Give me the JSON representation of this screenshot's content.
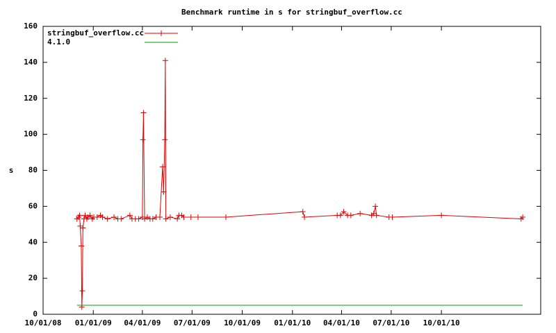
{
  "chart_data": {
    "type": "line",
    "title": "Benchmark runtime in s for stringbuf_overflow.cc",
    "y_label": "s",
    "legend": "top-left",
    "xlim": [
      "2008-10-01",
      "2011-04-01"
    ],
    "xticks": [
      {
        "value": "2008-10-01",
        "label": "10/01/08"
      },
      {
        "value": "2009-01-01",
        "label": "01/01/09"
      },
      {
        "value": "2009-04-01",
        "label": "04/01/09"
      },
      {
        "value": "2009-07-01",
        "label": "07/01/09"
      },
      {
        "value": "2009-10-01",
        "label": "10/01/09"
      },
      {
        "value": "2010-01-01",
        "label": "01/01/10"
      },
      {
        "value": "2010-04-01",
        "label": "04/01/10"
      },
      {
        "value": "2010-07-01",
        "label": "07/01/10"
      },
      {
        "value": "2010-10-01",
        "label": "10/01/10"
      }
    ],
    "ylim": [
      0,
      160
    ],
    "yticks": [
      0,
      20,
      40,
      60,
      80,
      100,
      120,
      140,
      160
    ],
    "series": [
      {
        "name": "stringbuf_overflow.cc",
        "color": "#e00000",
        "marker": "+",
        "x": [
          "2008-12-02",
          "2008-12-05",
          "2008-12-07",
          "2008-12-08",
          "2008-12-10",
          "2008-12-11",
          "2008-12-12",
          "2008-12-13",
          "2008-12-15",
          "2008-12-17",
          "2008-12-20",
          "2008-12-22",
          "2008-12-26",
          "2008-12-30",
          "2009-01-02",
          "2009-01-08",
          "2009-01-14",
          "2009-01-18",
          "2009-01-27",
          "2009-02-08",
          "2009-02-15",
          "2009-02-21",
          "2009-03-09",
          "2009-03-13",
          "2009-03-19",
          "2009-03-25",
          "2009-04-01",
          "2009-04-02",
          "2009-04-03",
          "2009-04-05",
          "2009-04-10",
          "2009-04-15",
          "2009-04-20",
          "2009-04-26",
          "2009-05-03",
          "2009-05-08",
          "2009-05-10",
          "2009-05-12",
          "2009-05-13",
          "2009-05-14",
          "2009-05-22",
          "2009-06-04",
          "2009-06-07",
          "2009-06-12",
          "2009-06-16",
          "2009-06-29",
          "2009-07-12",
          "2009-09-01",
          "2010-01-20",
          "2010-01-23",
          "2010-03-24",
          "2010-03-30",
          "2010-04-05",
          "2010-04-12",
          "2010-04-18",
          "2010-05-05",
          "2010-05-26",
          "2010-05-30",
          "2010-06-02",
          "2010-06-04",
          "2010-06-27",
          "2010-07-03",
          "2010-10-01",
          "2011-02-24",
          "2011-02-27"
        ],
        "values": [
          53,
          54,
          55,
          49,
          38,
          4,
          13,
          48,
          53,
          55,
          53,
          54,
          55,
          53,
          54,
          54,
          55,
          54,
          53,
          54,
          53,
          53,
          55,
          53,
          53,
          53,
          54,
          97,
          112,
          53,
          54,
          53,
          53,
          54,
          54,
          82,
          68,
          97,
          141,
          53,
          54,
          53,
          55,
          55,
          54,
          54,
          54,
          54,
          57,
          54,
          55,
          55,
          57,
          55,
          55,
          56,
          55,
          56,
          60,
          55,
          54,
          54,
          55,
          53,
          54
        ]
      },
      {
        "name": "4.1.0",
        "color": "#00a000",
        "x": [
          "2008-12-02",
          "2011-02-27"
        ],
        "values": [
          5,
          5
        ]
      }
    ]
  }
}
